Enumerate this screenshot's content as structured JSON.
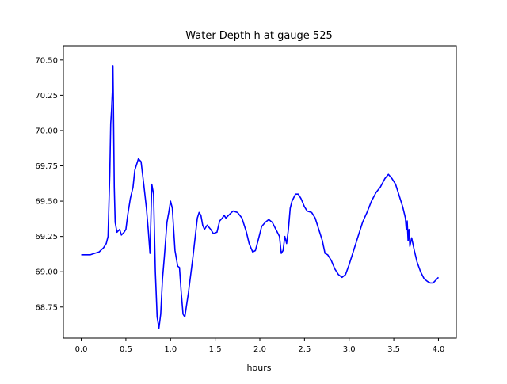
{
  "chart_data": {
    "type": "line",
    "title": "Water Depth h at gauge 525",
    "xlabel": "hours",
    "ylabel": "",
    "xlim": [
      -0.2,
      4.2
    ],
    "ylim": [
      68.53,
      70.6
    ],
    "xticks": [
      0.0,
      0.5,
      1.0,
      1.5,
      2.0,
      2.5,
      3.0,
      3.5,
      4.0
    ],
    "xtick_labels": [
      "0.0",
      "0.5",
      "1.0",
      "1.5",
      "2.0",
      "2.5",
      "3.0",
      "3.5",
      "4.0"
    ],
    "yticks": [
      68.75,
      69.0,
      69.25,
      69.5,
      69.75,
      70.0,
      70.25,
      70.5
    ],
    "ytick_labels": [
      "68.75",
      "69.00",
      "69.25",
      "69.50",
      "69.75",
      "70.00",
      "70.25",
      "70.50"
    ],
    "grid": false,
    "legend": "none",
    "series": [
      {
        "color": "#0000ff",
        "points": [
          [
            0.0,
            69.12
          ],
          [
            0.05,
            69.12
          ],
          [
            0.1,
            69.12
          ],
          [
            0.15,
            69.13
          ],
          [
            0.2,
            69.14
          ],
          [
            0.25,
            69.17
          ],
          [
            0.28,
            69.2
          ],
          [
            0.3,
            69.25
          ],
          [
            0.32,
            69.7
          ],
          [
            0.33,
            70.05
          ],
          [
            0.34,
            70.15
          ],
          [
            0.35,
            70.3
          ],
          [
            0.355,
            70.46
          ],
          [
            0.36,
            70.2
          ],
          [
            0.37,
            69.6
          ],
          [
            0.38,
            69.35
          ],
          [
            0.4,
            69.28
          ],
          [
            0.43,
            69.3
          ],
          [
            0.45,
            69.26
          ],
          [
            0.48,
            69.28
          ],
          [
            0.5,
            69.3
          ],
          [
            0.52,
            69.4
          ],
          [
            0.55,
            69.52
          ],
          [
            0.58,
            69.6
          ],
          [
            0.6,
            69.72
          ],
          [
            0.62,
            69.76
          ],
          [
            0.64,
            69.8
          ],
          [
            0.67,
            69.78
          ],
          [
            0.7,
            69.62
          ],
          [
            0.73,
            69.45
          ],
          [
            0.75,
            69.3
          ],
          [
            0.77,
            69.13
          ],
          [
            0.79,
            69.62
          ],
          [
            0.81,
            69.55
          ],
          [
            0.83,
            69.0
          ],
          [
            0.85,
            68.68
          ],
          [
            0.87,
            68.6
          ],
          [
            0.89,
            68.7
          ],
          [
            0.91,
            68.95
          ],
          [
            0.93,
            69.1
          ],
          [
            0.96,
            69.35
          ],
          [
            0.98,
            69.42
          ],
          [
            1.0,
            69.5
          ],
          [
            1.02,
            69.45
          ],
          [
            1.05,
            69.15
          ],
          [
            1.08,
            69.04
          ],
          [
            1.1,
            69.03
          ],
          [
            1.12,
            68.85
          ],
          [
            1.14,
            68.7
          ],
          [
            1.16,
            68.68
          ],
          [
            1.2,
            68.85
          ],
          [
            1.25,
            69.1
          ],
          [
            1.3,
            69.38
          ],
          [
            1.32,
            69.42
          ],
          [
            1.34,
            69.4
          ],
          [
            1.36,
            69.33
          ],
          [
            1.38,
            69.3
          ],
          [
            1.41,
            69.33
          ],
          [
            1.45,
            69.3
          ],
          [
            1.48,
            69.27
          ],
          [
            1.52,
            69.28
          ],
          [
            1.55,
            69.36
          ],
          [
            1.58,
            69.38
          ],
          [
            1.6,
            69.4
          ],
          [
            1.62,
            69.38
          ],
          [
            1.65,
            69.4
          ],
          [
            1.7,
            69.43
          ],
          [
            1.75,
            69.42
          ],
          [
            1.8,
            69.38
          ],
          [
            1.85,
            69.28
          ],
          [
            1.88,
            69.2
          ],
          [
            1.92,
            69.14
          ],
          [
            1.95,
            69.15
          ],
          [
            1.98,
            69.22
          ],
          [
            2.02,
            69.32
          ],
          [
            2.06,
            69.35
          ],
          [
            2.1,
            69.37
          ],
          [
            2.14,
            69.35
          ],
          [
            2.18,
            69.3
          ],
          [
            2.22,
            69.25
          ],
          [
            2.24,
            69.13
          ],
          [
            2.26,
            69.15
          ],
          [
            2.28,
            69.25
          ],
          [
            2.3,
            69.2
          ],
          [
            2.32,
            69.3
          ],
          [
            2.34,
            69.45
          ],
          [
            2.36,
            69.5
          ],
          [
            2.4,
            69.55
          ],
          [
            2.43,
            69.55
          ],
          [
            2.46,
            69.52
          ],
          [
            2.5,
            69.46
          ],
          [
            2.53,
            69.43
          ],
          [
            2.58,
            69.42
          ],
          [
            2.62,
            69.38
          ],
          [
            2.66,
            69.3
          ],
          [
            2.7,
            69.22
          ],
          [
            2.73,
            69.13
          ],
          [
            2.76,
            69.12
          ],
          [
            2.8,
            69.08
          ],
          [
            2.84,
            69.02
          ],
          [
            2.88,
            68.98
          ],
          [
            2.92,
            68.96
          ],
          [
            2.96,
            68.98
          ],
          [
            3.0,
            69.05
          ],
          [
            3.05,
            69.15
          ],
          [
            3.1,
            69.25
          ],
          [
            3.15,
            69.35
          ],
          [
            3.2,
            69.42
          ],
          [
            3.25,
            69.5
          ],
          [
            3.3,
            69.56
          ],
          [
            3.35,
            69.6
          ],
          [
            3.4,
            69.66
          ],
          [
            3.44,
            69.69
          ],
          [
            3.48,
            69.66
          ],
          [
            3.52,
            69.62
          ],
          [
            3.56,
            69.54
          ],
          [
            3.6,
            69.46
          ],
          [
            3.63,
            69.38
          ],
          [
            3.64,
            69.3
          ],
          [
            3.65,
            69.36
          ],
          [
            3.66,
            69.22
          ],
          [
            3.67,
            69.3
          ],
          [
            3.68,
            69.18
          ],
          [
            3.7,
            69.24
          ],
          [
            3.73,
            69.15
          ],
          [
            3.76,
            69.07
          ],
          [
            3.8,
            69.0
          ],
          [
            3.84,
            68.95
          ],
          [
            3.88,
            68.93
          ],
          [
            3.91,
            68.92
          ],
          [
            3.94,
            68.92
          ],
          [
            3.97,
            68.94
          ],
          [
            4.0,
            68.96
          ]
        ]
      }
    ]
  }
}
